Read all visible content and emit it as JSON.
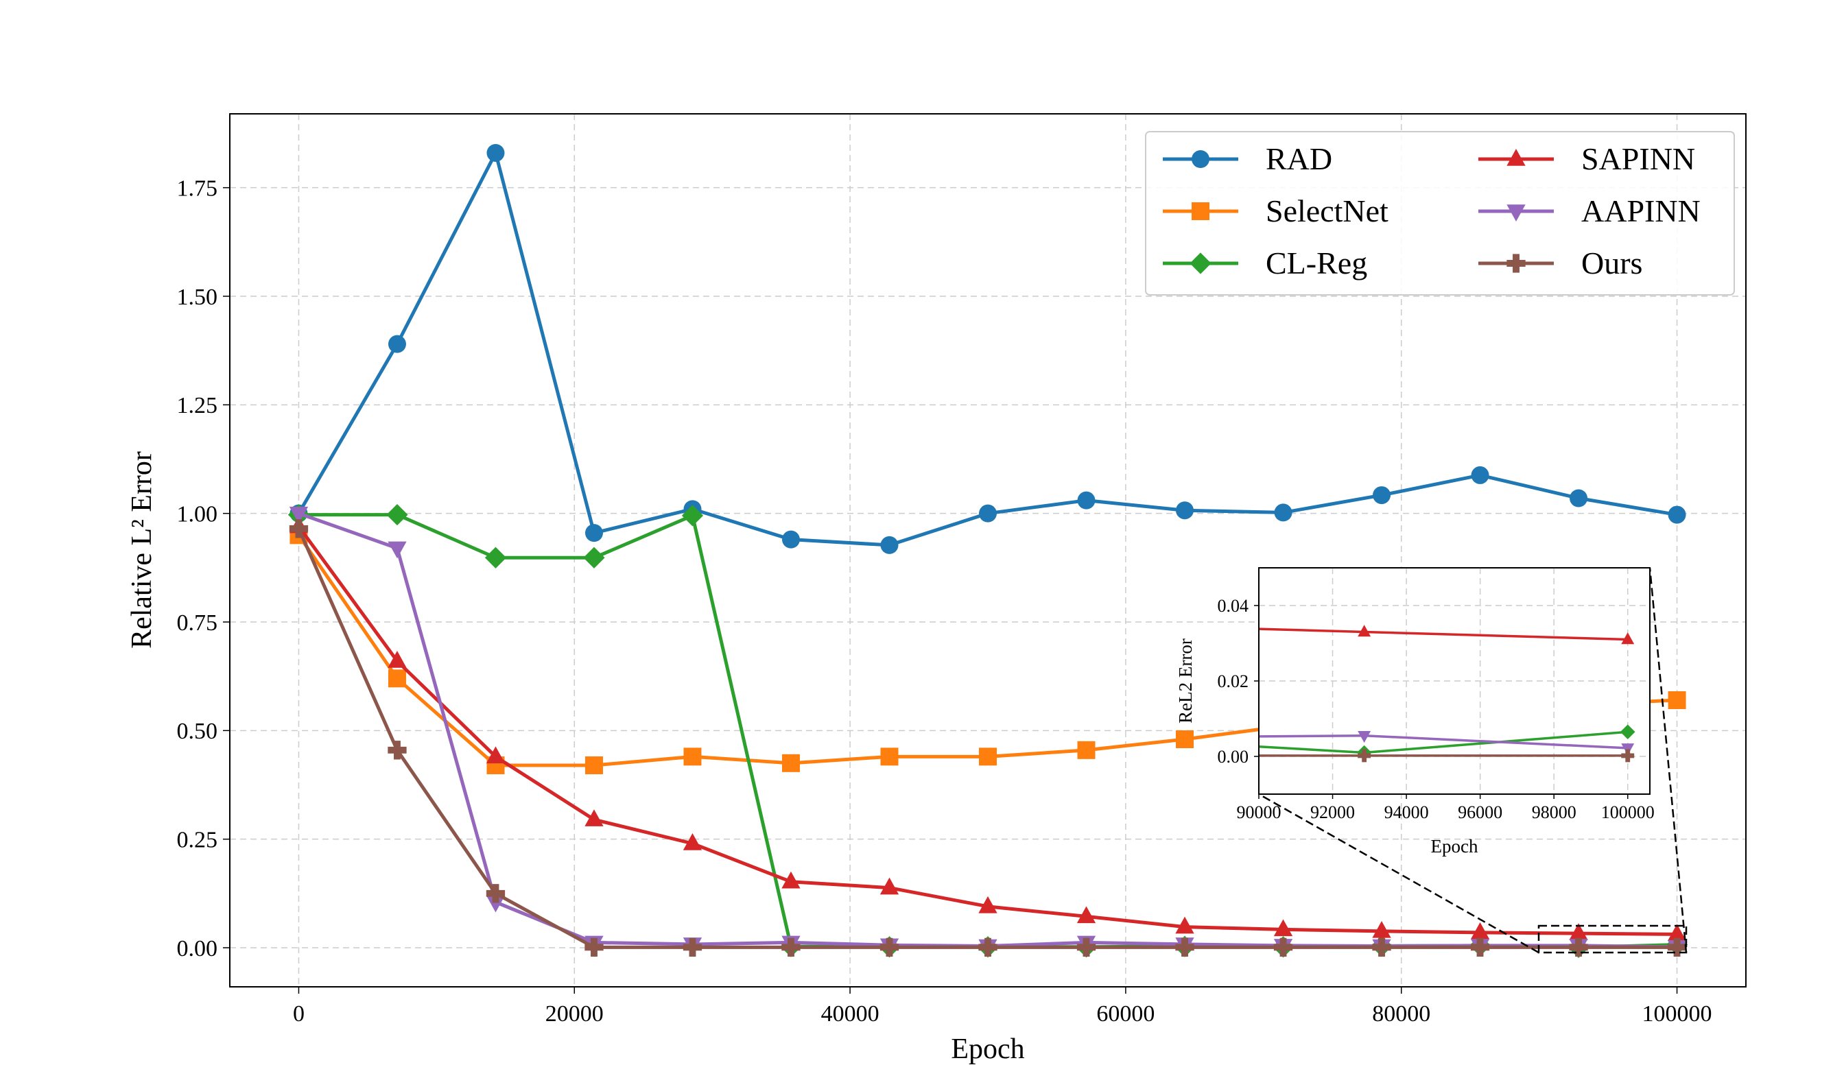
{
  "chart_data": [
    {
      "type": "line",
      "xlabel": "Epoch",
      "ylabel": "Relative L² Error",
      "xlim": [
        -5000,
        105000
      ],
      "ylim": [
        -0.09,
        1.92
      ],
      "xticks": [
        0,
        20000,
        40000,
        60000,
        80000,
        100000
      ],
      "xtick_labels": [
        "0",
        "20000",
        "40000",
        "60000",
        "80000",
        "100000"
      ],
      "yticks": [
        0.0,
        0.25,
        0.5,
        0.75,
        1.0,
        1.25,
        1.5,
        1.75
      ],
      "ytick_labels": [
        "0.00",
        "0.25",
        "0.50",
        "0.75",
        "1.00",
        "1.25",
        "1.50",
        "1.75"
      ],
      "grid": true,
      "legend_position": "top-right",
      "x": [
        0,
        7143,
        14286,
        21429,
        28571,
        35714,
        42857,
        50000,
        57143,
        64286,
        71429,
        78571,
        85714,
        92857,
        100000
      ],
      "series": [
        {
          "name": "RAD",
          "color": "#1f77b4",
          "marker": "circle",
          "values": [
            1.0,
            1.39,
            1.83,
            0.955,
            1.01,
            0.94,
            0.927,
            1.0,
            1.03,
            1.007,
            1.002,
            1.042,
            1.088,
            1.035,
            0.997
          ]
        },
        {
          "name": "SelectNet",
          "color": "#ff7f0e",
          "marker": "square",
          "values": [
            0.95,
            0.62,
            0.42,
            0.42,
            0.44,
            0.425,
            0.44,
            0.44,
            0.455,
            0.48,
            0.51,
            0.53,
            0.55,
            0.56,
            0.57
          ]
        },
        {
          "name": "CL-Reg",
          "color": "#2ca02c",
          "marker": "diamond",
          "values": [
            0.997,
            0.997,
            0.898,
            0.898,
            0.995,
            0.003,
            0.002,
            0.002,
            0.002,
            0.003,
            0.002,
            0.004,
            0.005,
            0.001,
            0.007
          ]
        },
        {
          "name": "SAPINN",
          "color": "#d62728",
          "marker": "triangle-up",
          "values": [
            0.97,
            0.66,
            0.44,
            0.295,
            0.24,
            0.152,
            0.138,
            0.095,
            0.072,
            0.048,
            0.042,
            0.038,
            0.035,
            0.033,
            0.031
          ]
        },
        {
          "name": "AAPINN",
          "color": "#9467bd",
          "marker": "triangle-down",
          "values": [
            1.0,
            0.92,
            0.105,
            0.012,
            0.008,
            0.012,
            0.006,
            0.004,
            0.012,
            0.008,
            0.005,
            0.004,
            0.005,
            0.005,
            0.002
          ]
        },
        {
          "name": "Ours",
          "color": "#8c564b",
          "marker": "plus",
          "values": [
            0.965,
            0.455,
            0.125,
            0.001,
            0.001,
            0.001,
            0.001,
            0.001,
            0.001,
            0.001,
            0.001,
            0.001,
            0.001,
            0.001,
            0.001
          ]
        }
      ]
    },
    {
      "type": "line",
      "xlabel": "Epoch",
      "ylabel": "ReL2 Error",
      "xlim": [
        90000,
        100600
      ],
      "ylim": [
        -0.01,
        0.05
      ],
      "xticks": [
        90000,
        92000,
        94000,
        96000,
        98000,
        100000
      ],
      "xtick_labels": [
        "90000",
        "92000",
        "94000",
        "96000",
        "98000",
        "100000"
      ],
      "yticks": [
        0.0,
        0.02,
        0.04
      ],
      "ytick_labels": [
        "0.00",
        "0.02",
        "0.04"
      ],
      "grid": true,
      "x": [
        85714,
        92857,
        100000
      ],
      "series": [
        {
          "name": "CL-Reg",
          "color": "#2ca02c",
          "marker": "diamond",
          "values": [
            0.005,
            0.001,
            0.0065
          ]
        },
        {
          "name": "SAPINN",
          "color": "#d62728",
          "marker": "triangle-up",
          "values": [
            0.035,
            0.033,
            0.031
          ]
        },
        {
          "name": "AAPINN",
          "color": "#9467bd",
          "marker": "triangle-down",
          "values": [
            0.005,
            0.0055,
            0.0022
          ]
        },
        {
          "name": "Ours",
          "color": "#8c564b",
          "marker": "plus",
          "values": [
            0.0002,
            0.0002,
            0.0002
          ]
        }
      ]
    }
  ]
}
